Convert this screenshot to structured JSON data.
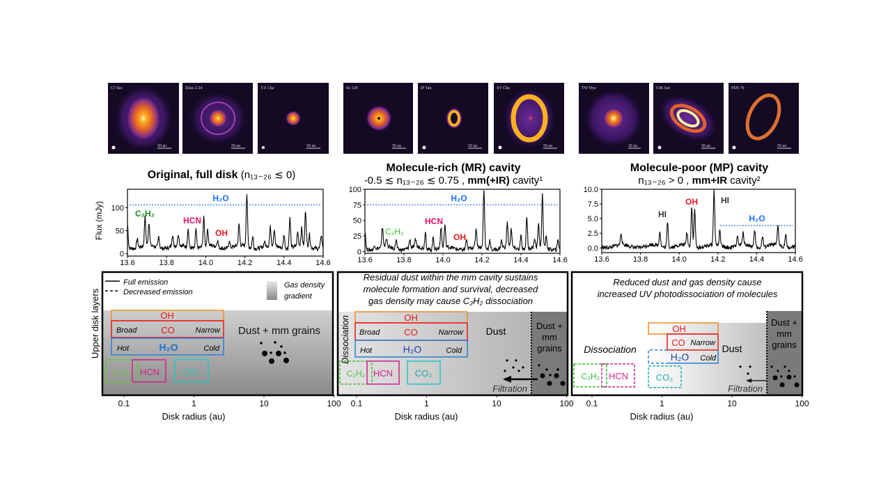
{
  "panels": [
    {
      "images": [
        {
          "name": "CI Tau",
          "scale": "50 au"
        },
        {
          "name": "Elias 2-24",
          "scale": "50 au"
        },
        {
          "name": "VZ Cha",
          "scale": "50 au"
        }
      ],
      "title_bold": "Original, full disk",
      "title_rest": " (n₁₃₋₂₆ ≲ 0)",
      "diagram": {
        "legend_full": "Full emission",
        "legend_decreased": "Decreased emission",
        "gradient_1": "Gas density",
        "gradient_2": "gradient",
        "oh": "OH",
        "co": "CO",
        "broad": "Broad",
        "narrow": "Narrow",
        "h2o": "H₂O",
        "hot": "Hot",
        "cold": "Cold",
        "c2h2": "C₂H₂",
        "hcn": "HCN",
        "co2": "CO₂",
        "dust": "Dust + mm grains",
        "ylabel": "Upper disk layers"
      }
    },
    {
      "images": [
        {
          "name": "Sz 129",
          "scale": "50 au"
        },
        {
          "name": "IP Tau",
          "scale": "50 au"
        },
        {
          "name": "SY Cha",
          "scale": "50 au"
        }
      ],
      "title_bold": "Molecule-rich (MR) cavity",
      "sub_pre": "-0.5 ≲ n₁₃₋₂₆ ≲ 0.75 , ",
      "sub_bold": "mm(+IR)",
      "sub_post": " cavity¹",
      "diagram": {
        "caption": [
          "Residual dust within the mm cavity sustains",
          "molecule formation and survival, decreased",
          "gas density may cause C₂H₂ dissociation"
        ],
        "dissociation": "Dissociation",
        "oh": "OH",
        "co": "CO",
        "broad": "Broad",
        "narrow": "Narrow",
        "h2o": "H₂O",
        "hot": "Hot",
        "cold": "Cold",
        "c2h2": "C₂H₂",
        "hcn": "HCN",
        "co2": "CO₂",
        "dust": "Dust",
        "dust_mm": [
          "Dust +",
          "mm",
          "grains"
        ],
        "filtration": "Filtration"
      }
    },
    {
      "images": [
        {
          "name": "TW Hya",
          "scale": "20 au"
        },
        {
          "name": "GM Aur",
          "scale": "50 au"
        },
        {
          "name": "PDS 70",
          "scale": "50 au"
        }
      ],
      "title_bold": "Molecule-poor (MP) cavity",
      "sub_pre": "n₁₃₋₂₆ > 0 , ",
      "sub_bold": "mm+IR",
      "sub_post": " cavity²",
      "diagram": {
        "caption": [
          "Reduced dust and gas density cause",
          "increased UV photodissociation of molecules"
        ],
        "dissociation": "Dissociation",
        "oh": "OH",
        "co": "CO",
        "narrow": "Narrow",
        "h2o": "H₂O",
        "cold": "Cold",
        "c2h2": "C₂H₂",
        "hcn": "HCN",
        "co2": "CO₂",
        "dust": "Dust",
        "dust_mm": [
          "Dust +",
          "mm",
          "grains"
        ],
        "filtration": "Filtration"
      }
    }
  ],
  "diagram_axis": {
    "xlabel": "Disk radius (au)",
    "ticks": [
      "0.1",
      "1",
      "10",
      "100"
    ],
    "scale": "log"
  },
  "colors": {
    "oh": "#f08a24",
    "co": "#e81818",
    "h2o": "#2a7fd4",
    "h2o_text": "#1a3fb0",
    "c2h2": "#4fc03a",
    "hcn": "#d0208a",
    "co2": "#20c8c0",
    "h2o_line": "#1a6fff"
  },
  "chart_data": [
    {
      "type": "line",
      "ylabel": "Flux (mJy)",
      "xlim": [
        13.6,
        14.6
      ],
      "ylim": [
        -5,
        140
      ],
      "xticks": [
        "13.6",
        "13.8",
        "14.0",
        "14.2",
        "14.4",
        "14.6"
      ],
      "yticks": [
        "0",
        "50",
        "100"
      ],
      "baseline": 15,
      "peaks": [
        [
          13.6,
          65
        ],
        [
          13.65,
          35
        ],
        [
          13.69,
          77
        ],
        [
          13.71,
          65
        ],
        [
          13.76,
          40
        ],
        [
          13.83,
          40
        ],
        [
          13.86,
          40
        ],
        [
          13.91,
          55
        ],
        [
          13.95,
          55
        ],
        [
          13.99,
          77
        ],
        [
          14.01,
          50
        ],
        [
          14.06,
          30
        ],
        [
          14.12,
          30
        ],
        [
          14.17,
          60
        ],
        [
          14.21,
          130
        ],
        [
          14.24,
          40
        ],
        [
          14.3,
          25
        ],
        [
          14.33,
          55
        ],
        [
          14.35,
          50
        ],
        [
          14.4,
          45
        ],
        [
          14.43,
          80
        ],
        [
          14.47,
          45
        ],
        [
          14.49,
          52
        ],
        [
          14.51,
          92
        ],
        [
          14.53,
          42
        ],
        [
          14.59,
          43
        ]
      ],
      "h2o_level": 106,
      "h2o_range": [
        13.6,
        14.6
      ],
      "labels": {
        "h2o": "H₂O",
        "c2h2": "C₂H₂",
        "hcn": "HCN",
        "oh": "OH"
      }
    },
    {
      "type": "line",
      "xlim": [
        13.6,
        14.6
      ],
      "ylim": [
        -3,
        100
      ],
      "xticks": [
        "13.6",
        "13.8",
        "14.0",
        "14.2",
        "14.4",
        "14.6"
      ],
      "yticks": [
        "0",
        "25",
        "50",
        "75",
        "100"
      ],
      "baseline": 5,
      "peaks": [
        [
          13.6,
          35
        ],
        [
          13.65,
          12
        ],
        [
          13.69,
          37
        ],
        [
          13.71,
          20
        ],
        [
          13.76,
          20
        ],
        [
          13.83,
          18
        ],
        [
          13.86,
          18
        ],
        [
          13.91,
          32
        ],
        [
          13.95,
          25
        ],
        [
          13.99,
          38
        ],
        [
          14.01,
          40
        ],
        [
          14.12,
          20
        ],
        [
          14.17,
          35
        ],
        [
          14.21,
          97
        ],
        [
          14.24,
          20
        ],
        [
          14.3,
          17
        ],
        [
          14.33,
          44
        ],
        [
          14.35,
          35
        ],
        [
          14.4,
          27
        ],
        [
          14.43,
          57
        ],
        [
          14.47,
          20
        ],
        [
          14.49,
          40
        ],
        [
          14.51,
          89
        ],
        [
          14.53,
          24
        ],
        [
          14.59,
          20
        ]
      ],
      "h2o_level": 75,
      "h2o_range": [
        13.6,
        14.6
      ],
      "labels": {
        "h2o": "H₂O",
        "c2h2": "C₂H₂",
        "hcn": "HCN",
        "oh": "OH"
      }
    },
    {
      "type": "line",
      "xlim": [
        13.6,
        14.6
      ],
      "ylim": [
        -0.8,
        10
      ],
      "xticks": [
        "13.6",
        "13.8",
        "14.0",
        "14.2",
        "14.4",
        "14.6"
      ],
      "yticks": [
        "0.0",
        "2.5",
        "5.0",
        "7.5",
        "10.0"
      ],
      "baseline": 0.3,
      "peaks": [
        [
          13.7,
          2.3
        ],
        [
          13.9,
          2.8
        ],
        [
          13.94,
          4.8
        ],
        [
          14.04,
          2.5
        ],
        [
          14.065,
          7.2
        ],
        [
          14.08,
          6.8
        ],
        [
          14.18,
          9.6
        ],
        [
          14.21,
          2.8
        ],
        [
          14.3,
          2.0
        ],
        [
          14.33,
          2.5
        ],
        [
          14.39,
          3.2
        ],
        [
          14.43,
          2.2
        ],
        [
          14.51,
          3.5
        ],
        [
          14.55,
          2.5
        ]
      ],
      "h2o_level": 3.8,
      "h2o_range": [
        14.2,
        14.6
      ],
      "labels": {
        "h2o": "H₂O",
        "oh": "OH",
        "hi1": "HI",
        "hi2": "HI"
      }
    }
  ]
}
